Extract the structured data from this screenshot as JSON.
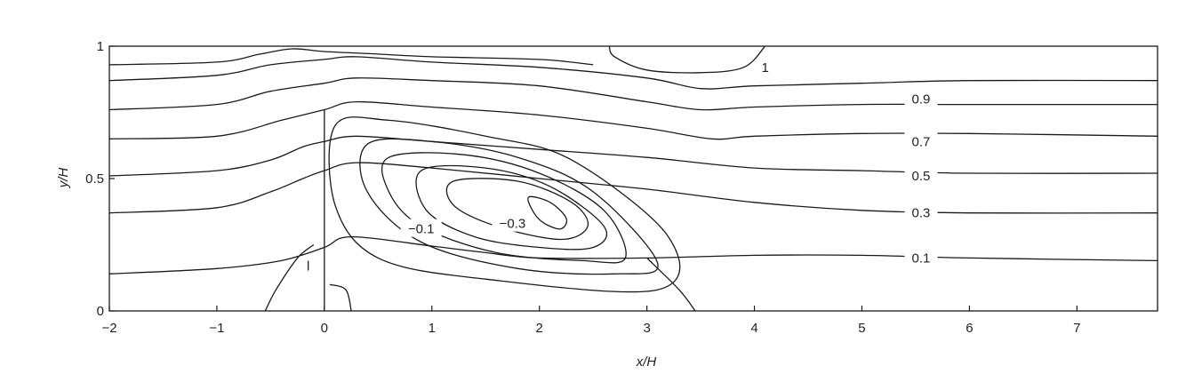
{
  "chart_data": {
    "type": "contour",
    "title": "",
    "xlabel": "x/H",
    "ylabel": "y/H",
    "xlim": [
      -2,
      7.75
    ],
    "ylim": [
      0,
      1
    ],
    "x_ticks": [
      {
        "value": -2,
        "label": "−2"
      },
      {
        "value": -1,
        "label": "−1"
      },
      {
        "value": 0,
        "label": "0"
      },
      {
        "value": 1,
        "label": "1"
      },
      {
        "value": 2,
        "label": "2"
      },
      {
        "value": 3,
        "label": "3"
      },
      {
        "value": 4,
        "label": "4"
      },
      {
        "value": 5,
        "label": "5"
      },
      {
        "value": 6,
        "label": "6"
      },
      {
        "value": 7,
        "label": "7"
      }
    ],
    "y_ticks": [
      {
        "value": 0,
        "label": "0"
      },
      {
        "value": 0.5,
        "label": "0.5"
      },
      {
        "value": 1,
        "label": "1"
      }
    ],
    "grid": false,
    "series": [
      {
        "name": "0.1",
        "points": [
          [
            -2,
            0.14
          ],
          [
            -1,
            0.16
          ],
          [
            -0.4,
            0.19
          ],
          [
            0,
            0.24
          ],
          [
            0.25,
            0.28
          ],
          [
            1,
            0.245
          ],
          [
            1.5,
            0.22
          ],
          [
            2,
            0.2
          ],
          [
            3,
            0.2
          ],
          [
            4,
            0.21
          ],
          [
            5,
            0.21
          ],
          [
            6,
            0.2
          ],
          [
            7.75,
            0.19
          ]
        ]
      },
      {
        "name": "0.3",
        "points": [
          [
            -2,
            0.37
          ],
          [
            -1,
            0.39
          ],
          [
            -0.5,
            0.45
          ],
          [
            -0.2,
            0.5
          ],
          [
            0,
            0.53
          ],
          [
            0.3,
            0.56
          ],
          [
            1,
            0.54
          ],
          [
            2,
            0.5
          ],
          [
            3,
            0.46
          ],
          [
            4,
            0.41
          ],
          [
            5,
            0.38
          ],
          [
            6,
            0.37
          ],
          [
            7.75,
            0.37
          ]
        ]
      },
      {
        "name": "0.5",
        "points": [
          [
            -2,
            0.51
          ],
          [
            -1,
            0.53
          ],
          [
            -0.5,
            0.57
          ],
          [
            -0.2,
            0.62
          ],
          [
            0,
            0.64
          ],
          [
            0.3,
            0.66
          ],
          [
            1,
            0.64
          ],
          [
            2,
            0.61
          ],
          [
            3,
            0.58
          ],
          [
            4,
            0.54
          ],
          [
            5,
            0.53
          ],
          [
            6,
            0.52
          ],
          [
            7.75,
            0.52
          ]
        ]
      },
      {
        "name": "0.7",
        "points": [
          [
            -2,
            0.65
          ],
          [
            -1,
            0.66
          ],
          [
            -0.4,
            0.72
          ],
          [
            0,
            0.76
          ],
          [
            0.3,
            0.79
          ],
          [
            1,
            0.77
          ],
          [
            2,
            0.74
          ],
          [
            3,
            0.69
          ],
          [
            3.6,
            0.65
          ],
          [
            4,
            0.66
          ],
          [
            5,
            0.67
          ],
          [
            6,
            0.67
          ],
          [
            7.75,
            0.66
          ]
        ]
      },
      {
        "name": "",
        "points": [
          [
            -2,
            0.76
          ],
          [
            -1,
            0.78
          ],
          [
            -0.5,
            0.83
          ],
          [
            0,
            0.86
          ],
          [
            0.3,
            0.88
          ],
          [
            1,
            0.87
          ],
          [
            2,
            0.85
          ],
          [
            3,
            0.79
          ],
          [
            3.5,
            0.76
          ],
          [
            4,
            0.77
          ],
          [
            5,
            0.78
          ],
          [
            6,
            0.78
          ],
          [
            7.75,
            0.78
          ]
        ]
      },
      {
        "name": "0.9",
        "points": [
          [
            -2,
            0.87
          ],
          [
            -1,
            0.89
          ],
          [
            -0.5,
            0.93
          ],
          [
            0,
            0.95
          ],
          [
            0.3,
            0.96
          ],
          [
            1,
            0.94
          ],
          [
            2,
            0.92
          ],
          [
            3,
            0.88
          ],
          [
            3.5,
            0.84
          ],
          [
            4,
            0.85
          ],
          [
            5,
            0.86
          ],
          [
            6,
            0.87
          ],
          [
            7.75,
            0.87
          ]
        ]
      },
      {
        "name": "1",
        "points": [
          [
            -2,
            0.93
          ],
          [
            -1,
            0.94
          ],
          [
            -0.6,
            0.97
          ],
          [
            -0.3,
            0.99
          ],
          [
            0,
            0.98
          ],
          [
            0.5,
            0.97
          ],
          [
            1,
            0.96
          ],
          [
            2,
            0.95
          ],
          [
            2.5,
            0.93
          ]
        ]
      },
      {
        "name": "1",
        "points": [
          [
            2.65,
            1
          ],
          [
            2.7,
            0.96
          ],
          [
            3,
            0.91
          ],
          [
            3.5,
            0.9
          ],
          [
            3.9,
            0.92
          ],
          [
            4.1,
            1
          ]
        ]
      },
      {
        "name": "",
        "points": [
          [
            -0.55,
            0
          ],
          [
            -0.45,
            0.08
          ],
          [
            -0.25,
            0.2
          ],
          [
            -0.1,
            0.25
          ]
        ]
      },
      {
        "name": "",
        "points": [
          [
            0.05,
            0.1
          ],
          [
            0.2,
            0.08
          ],
          [
            0.25,
            0
          ]
        ]
      },
      {
        "name": "",
        "points": [
          [
            3,
            0.2
          ],
          [
            3.3,
            0.08
          ],
          [
            3.45,
            0
          ]
        ]
      },
      {
        "name": "−0.1",
        "closed": true,
        "points": [
          [
            0.1,
            0.7
          ],
          [
            0.6,
            0.72
          ],
          [
            1.5,
            0.66
          ],
          [
            2.3,
            0.57
          ],
          [
            3.2,
            0.28
          ],
          [
            3.1,
            0.08
          ],
          [
            1.5,
            0.12
          ],
          [
            0.5,
            0.2
          ],
          [
            0.1,
            0.4
          ]
        ]
      },
      {
        "name": "",
        "closed": true,
        "points": [
          [
            0.4,
            0.63
          ],
          [
            1,
            0.64
          ],
          [
            1.8,
            0.58
          ],
          [
            2.5,
            0.45
          ],
          [
            3.1,
            0.18
          ],
          [
            2.7,
            0.14
          ],
          [
            1.8,
            0.16
          ],
          [
            0.9,
            0.26
          ],
          [
            0.4,
            0.45
          ]
        ]
      },
      {
        "name": "",
        "closed": true,
        "points": [
          [
            0.6,
            0.58
          ],
          [
            1.3,
            0.59
          ],
          [
            2,
            0.52
          ],
          [
            2.6,
            0.38
          ],
          [
            2.8,
            0.2
          ],
          [
            2.4,
            0.19
          ],
          [
            1.6,
            0.22
          ],
          [
            0.9,
            0.32
          ],
          [
            0.6,
            0.45
          ]
        ]
      },
      {
        "name": "",
        "closed": true,
        "points": [
          [
            0.9,
            0.53
          ],
          [
            1.5,
            0.54
          ],
          [
            2.1,
            0.47
          ],
          [
            2.6,
            0.32
          ],
          [
            2.5,
            0.24
          ],
          [
            2,
            0.24
          ],
          [
            1.4,
            0.28
          ],
          [
            0.95,
            0.38
          ]
        ]
      },
      {
        "name": "",
        "closed": true,
        "points": [
          [
            1.2,
            0.49
          ],
          [
            1.8,
            0.49
          ],
          [
            2.3,
            0.41
          ],
          [
            2.45,
            0.32
          ],
          [
            2.2,
            0.27
          ],
          [
            1.6,
            0.32
          ],
          [
            1.2,
            0.4
          ]
        ]
      },
      {
        "name": "−0.3",
        "closed": true,
        "points": [
          [
            1.9,
            0.43
          ],
          [
            2.1,
            0.41
          ],
          [
            2.25,
            0.35
          ],
          [
            2.2,
            0.31
          ],
          [
            2.05,
            0.33
          ],
          [
            1.95,
            0.37
          ]
        ]
      }
    ],
    "annotations": [
      {
        "text": "1",
        "x": 4.1,
        "y": 0.92
      },
      {
        "text": "0.9",
        "x": 5.55,
        "y": 0.8
      },
      {
        "text": "0.7",
        "x": 5.55,
        "y": 0.64
      },
      {
        "text": "0.5",
        "x": 5.55,
        "y": 0.51
      },
      {
        "text": "0.3",
        "x": 5.55,
        "y": 0.37
      },
      {
        "text": "0.1",
        "x": 5.55,
        "y": 0.2
      },
      {
        "text": "−0.1",
        "x": 0.9,
        "y": 0.31
      },
      {
        "text": "−0.3",
        "x": 1.75,
        "y": 0.33
      },
      {
        "text": "l",
        "x": -0.15,
        "y": 0.17
      }
    ]
  }
}
